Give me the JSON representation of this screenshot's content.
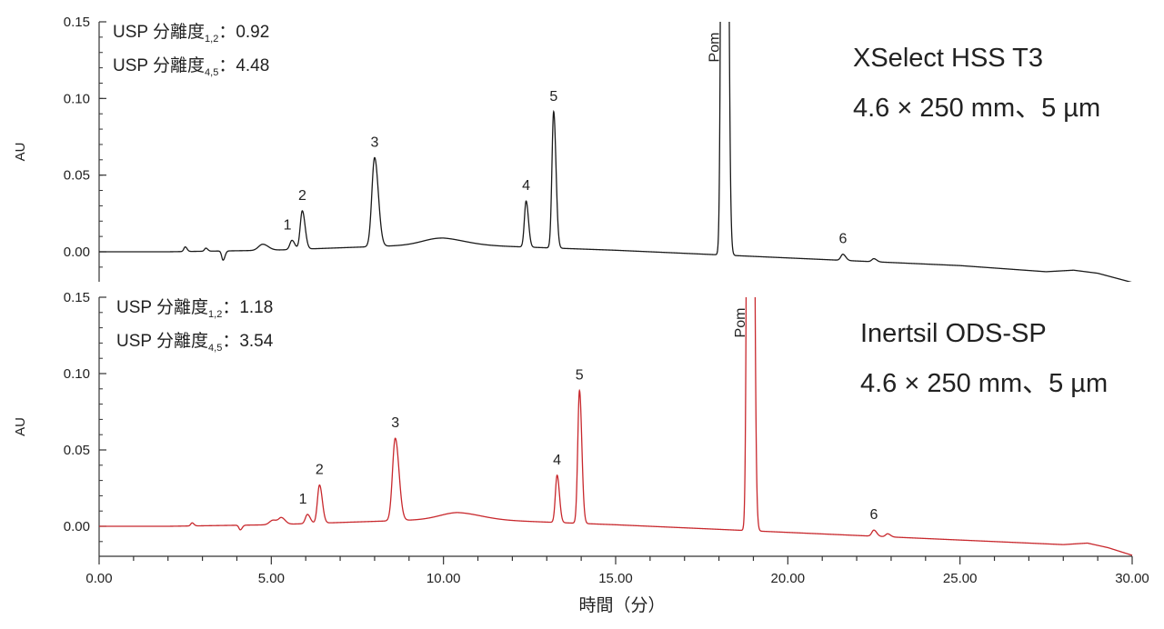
{
  "chart_data": [
    {
      "type": "line",
      "ylabel": "AU",
      "ylim": [
        -0.02,
        0.15
      ],
      "yticks": [
        "0.00",
        "0.05",
        "0.10",
        "0.15"
      ],
      "xlim": [
        0,
        30
      ],
      "line_color": "#1a1a1a",
      "column_text": [
        "XSelect HSS T3",
        "4.6 × 250 mm、5 µm"
      ],
      "resolution": [
        {
          "prefix": "USP 分離度",
          "sub": "1,2",
          "value": "：0.92"
        },
        {
          "prefix": "USP 分離度",
          "sub": "4,5",
          "value": "：4.48"
        }
      ],
      "baseline": [
        [
          0,
          0.0
        ],
        [
          2.0,
          0.0
        ],
        [
          5.0,
          0.001
        ],
        [
          10.0,
          0.005
        ],
        [
          15.0,
          0.001
        ],
        [
          20.0,
          -0.004
        ],
        [
          25.0,
          -0.009
        ],
        [
          27.5,
          -0.013
        ],
        [
          28.3,
          -0.012
        ],
        [
          29.0,
          -0.014
        ],
        [
          30.0,
          -0.02
        ]
      ],
      "peaks": [
        {
          "t": 2.5,
          "h": 0.003,
          "w": 0.04
        },
        {
          "t": 3.1,
          "h": 0.002,
          "w": 0.04
        },
        {
          "t": 3.6,
          "h": -0.006,
          "w": 0.04
        },
        {
          "t": 4.75,
          "h": 0.004,
          "w": 0.12
        },
        {
          "t": 5.6,
          "h": 0.006,
          "w": 0.06,
          "label": "1"
        },
        {
          "t": 5.9,
          "h": 0.025,
          "w": 0.06,
          "label": "2"
        },
        {
          "t": 8.0,
          "h": 0.058,
          "w": 0.08,
          "label": "3"
        },
        {
          "t": 9.9,
          "h": 0.004,
          "w": 0.5
        },
        {
          "t": 12.4,
          "h": 0.03,
          "w": 0.05,
          "label": "4"
        },
        {
          "t": 13.2,
          "h": 0.089,
          "w": 0.05,
          "label": "5"
        },
        {
          "t": 18.15,
          "h": 1.2,
          "w": 0.055,
          "label": "Pom"
        },
        {
          "t": 21.6,
          "h": 0.004,
          "w": 0.06,
          "label": "6"
        },
        {
          "t": 22.5,
          "h": 0.002,
          "w": 0.06
        }
      ]
    },
    {
      "type": "line",
      "ylabel": "AU",
      "ylim": [
        -0.02,
        0.15
      ],
      "yticks": [
        "0.00",
        "0.05",
        "0.10",
        "0.15"
      ],
      "xlim": [
        0,
        30
      ],
      "line_color": "#c8282d",
      "column_text": [
        "Inertsil ODS-SP",
        "4.6 × 250 mm、5 µm"
      ],
      "resolution": [
        {
          "prefix": "USP 分離度",
          "sub": "1,2",
          "value": "：1.18"
        },
        {
          "prefix": "USP 分離度",
          "sub": "4,5",
          "value": "：3.54"
        }
      ],
      "baseline": [
        [
          0,
          0.0
        ],
        [
          2.0,
          0.0
        ],
        [
          5.0,
          0.001
        ],
        [
          10.4,
          0.005
        ],
        [
          15.0,
          0.001
        ],
        [
          20.0,
          -0.004
        ],
        [
          25.0,
          -0.009
        ],
        [
          28.0,
          -0.012
        ],
        [
          28.7,
          -0.011
        ],
        [
          29.3,
          -0.014
        ],
        [
          30.0,
          -0.019
        ]
      ],
      "peaks": [
        {
          "t": 2.7,
          "h": 0.002,
          "w": 0.04
        },
        {
          "t": 4.1,
          "h": -0.003,
          "w": 0.04
        },
        {
          "t": 5.05,
          "h": 0.003,
          "w": 0.1
        },
        {
          "t": 5.3,
          "h": 0.004,
          "w": 0.08
        },
        {
          "t": 6.05,
          "h": 0.006,
          "w": 0.06,
          "label": "1"
        },
        {
          "t": 6.4,
          "h": 0.025,
          "w": 0.06,
          "label": "2"
        },
        {
          "t": 8.6,
          "h": 0.054,
          "w": 0.08,
          "label": "3"
        },
        {
          "t": 10.4,
          "h": 0.004,
          "w": 0.5
        },
        {
          "t": 13.3,
          "h": 0.031,
          "w": 0.05,
          "label": "4"
        },
        {
          "t": 13.95,
          "h": 0.087,
          "w": 0.05,
          "label": "5"
        },
        {
          "t": 18.9,
          "h": 1.2,
          "w": 0.055,
          "label": "Pom"
        },
        {
          "t": 22.5,
          "h": 0.004,
          "w": 0.06,
          "label": "6"
        },
        {
          "t": 22.9,
          "h": 0.002,
          "w": 0.06
        }
      ]
    }
  ],
  "x_axis": {
    "title": "時間（分）",
    "ticks": [
      "0.00",
      "5.00",
      "10.00",
      "15.00",
      "20.00",
      "25.00",
      "30.00"
    ]
  }
}
